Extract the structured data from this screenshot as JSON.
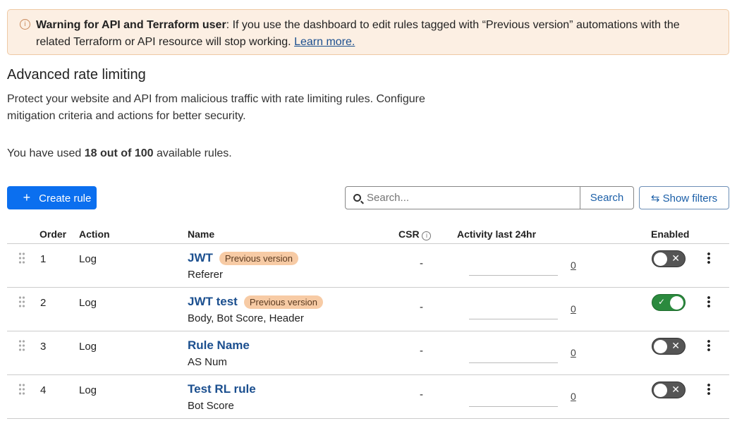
{
  "banner": {
    "icon": "info-icon",
    "title": "Warning for API and Terraform user",
    "text": ": If you use the dashboard to edit rules tagged with “Previous version” automations with the related Terraform or API resource will stop working. ",
    "link": "Learn more."
  },
  "page": {
    "title": "Advanced rate limiting",
    "description": "Protect your website and API from malicious traffic with rate limiting rules. Configure mitigation criteria and actions for better security.",
    "usage_prefix": "You have used ",
    "usage_bold": "18 out of 100",
    "usage_suffix": " available rules."
  },
  "toolbar": {
    "create_label": "Create rule",
    "search_placeholder": "Search...",
    "search_button": "Search",
    "filters_label": "Show filters"
  },
  "table": {
    "headers": {
      "order": "Order",
      "action": "Action",
      "name": "Name",
      "csr": "CSR",
      "activity": "Activity last 24hr",
      "enabled": "Enabled"
    },
    "rows": [
      {
        "order": "1",
        "action": "Log",
        "name": "JWT",
        "badge": "Previous version",
        "sub": "Referer",
        "csr": "-",
        "count": "0",
        "enabled": false
      },
      {
        "order": "2",
        "action": "Log",
        "name": "JWT test",
        "badge": "Previous version",
        "sub": "Body, Bot Score, Header",
        "csr": "-",
        "count": "0",
        "enabled": true
      },
      {
        "order": "3",
        "action": "Log",
        "name": "Rule Name",
        "badge": null,
        "sub": "AS Num",
        "csr": "-",
        "count": "0",
        "enabled": false
      },
      {
        "order": "4",
        "action": "Log",
        "name": "Test RL rule",
        "badge": null,
        "sub": "Bot Score",
        "csr": "-",
        "count": "0",
        "enabled": false
      }
    ]
  },
  "colors": {
    "primary": "#0b6fef",
    "link": "#1b4f8f",
    "badge": "#f7cba5",
    "toggle_on": "#2b8a3e",
    "toggle_off": "#555555",
    "banner_bg": "#fcefe3"
  }
}
